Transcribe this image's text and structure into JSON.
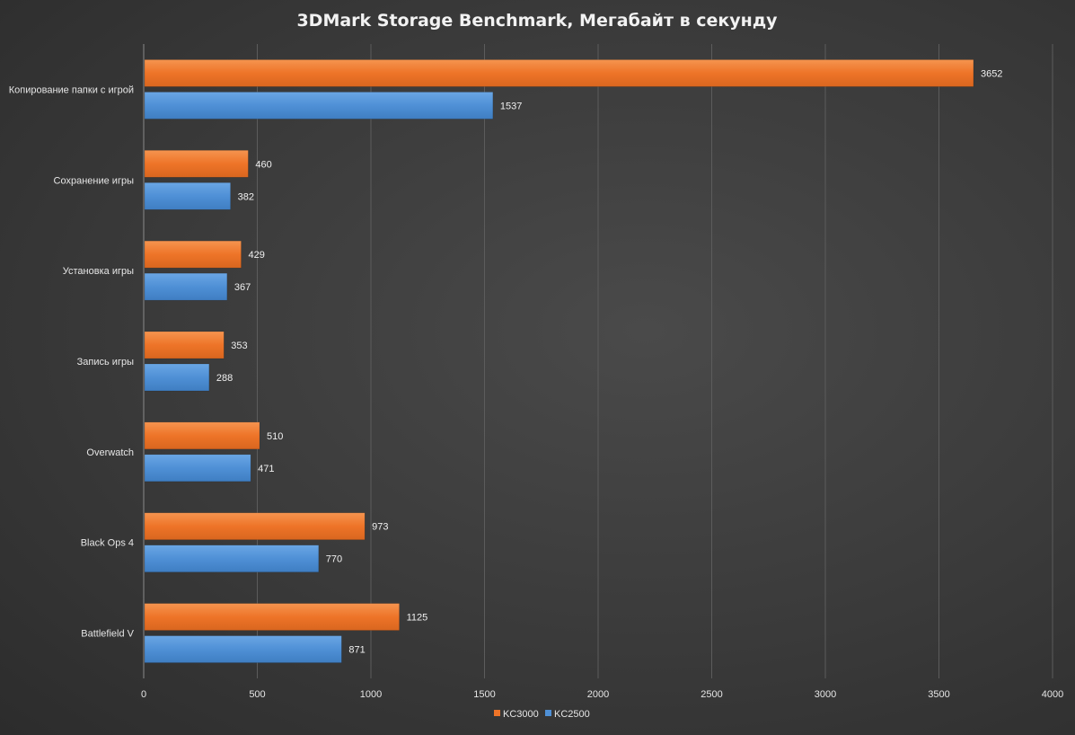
{
  "chart_data": {
    "type": "bar",
    "orientation": "horizontal",
    "title": "3DMark Storage Benchmark, Мегабайт в секунду",
    "categories": [
      "Копирование папки с игрой",
      "Сохранение игры",
      "Установка игры",
      "Запись игры",
      "Overwatch",
      "Black Ops 4",
      "Battlefield V"
    ],
    "series": [
      {
        "name": "KC3000",
        "color": "#ee7428",
        "values": [
          3652,
          460,
          429,
          353,
          510,
          973,
          1125
        ]
      },
      {
        "name": "KC2500",
        "color": "#4f90d6",
        "values": [
          1537,
          382,
          367,
          288,
          471,
          770,
          871
        ]
      }
    ],
    "xlim": [
      0,
      4000
    ],
    "xticks": [
      0,
      500,
      1000,
      1500,
      2000,
      2500,
      3000,
      3500,
      4000
    ],
    "xlabel": "",
    "ylabel": "",
    "grid": true,
    "legend_position": "bottom",
    "data_labels": true
  }
}
